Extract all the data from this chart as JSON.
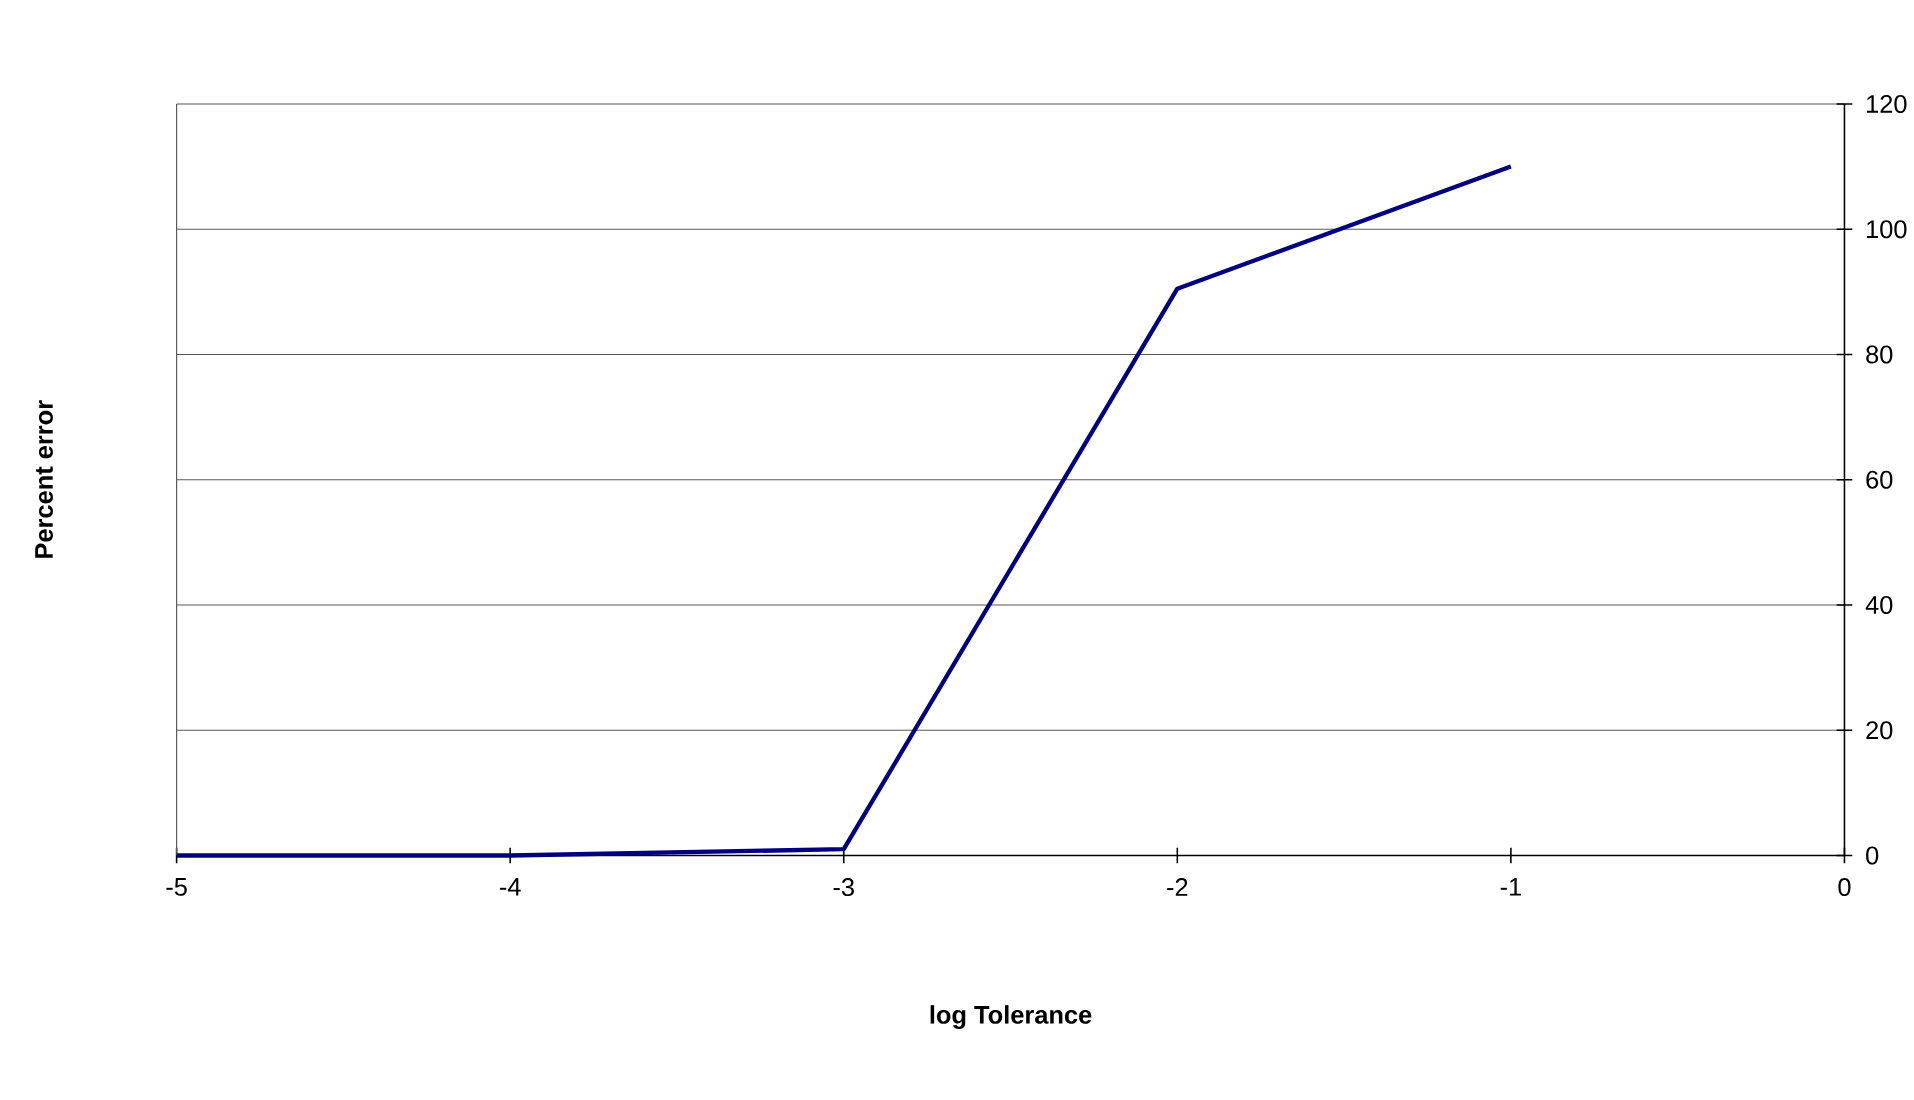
{
  "chart_data": {
    "type": "line",
    "xlabel": "log Tolerance",
    "ylabel": "Percent error",
    "x": [
      -5,
      -4,
      -3,
      -2,
      -1
    ],
    "series": [
      {
        "color": "#000080",
        "values": [
          0,
          0,
          1,
          90.5,
          110
        ]
      }
    ],
    "xlim": [
      -5,
      0
    ],
    "xticks": [
      -5,
      -4,
      -3,
      -2,
      -1,
      0
    ],
    "ylim": [
      0,
      120
    ],
    "yticks": [
      0,
      20,
      40,
      60,
      80,
      100,
      120
    ],
    "grid": "y",
    "marker": "none",
    "line_style": "solid"
  }
}
